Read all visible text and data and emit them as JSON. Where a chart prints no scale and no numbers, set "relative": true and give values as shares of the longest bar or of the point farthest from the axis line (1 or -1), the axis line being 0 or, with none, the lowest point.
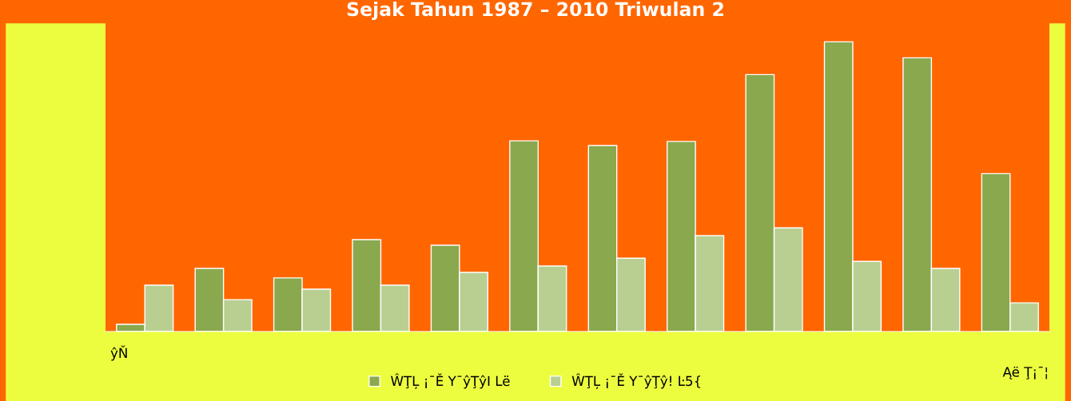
{
  "chart_data": {
    "type": "bar",
    "title": "Sejak Tahun 1987 – 2010 Triwulan 2",
    "relative": true,
    "categories": [
      null,
      null,
      null,
      null,
      null,
      null,
      null,
      null,
      null,
      null,
      null,
      null
    ],
    "series": [
      {
        "name": "ŴŢĻ ¡¯Ě Y¯ŷŢŷI Lë",
        "color": "#8aa84e",
        "values": [
          0.025,
          0.218,
          0.185,
          0.317,
          0.298,
          0.658,
          0.642,
          0.656,
          0.887,
          1,
          0.945,
          0.545
        ]
      },
      {
        "name": "ŴŢĻ ¡¯Ě Y¯ŷŢŷ! Ŀ5{",
        "color": "#b9cf92",
        "values": [
          0.16,
          0.11,
          0.146,
          0.16,
          0.204,
          0.226,
          0.253,
          0.331,
          0.358,
          0.242,
          0.218,
          0.099
        ]
      }
    ],
    "annotations": [
      "ŷŇ",
      "Ąë Ţ¡¯¦"
    ],
    "legend": "bottom",
    "grid": false
  }
}
